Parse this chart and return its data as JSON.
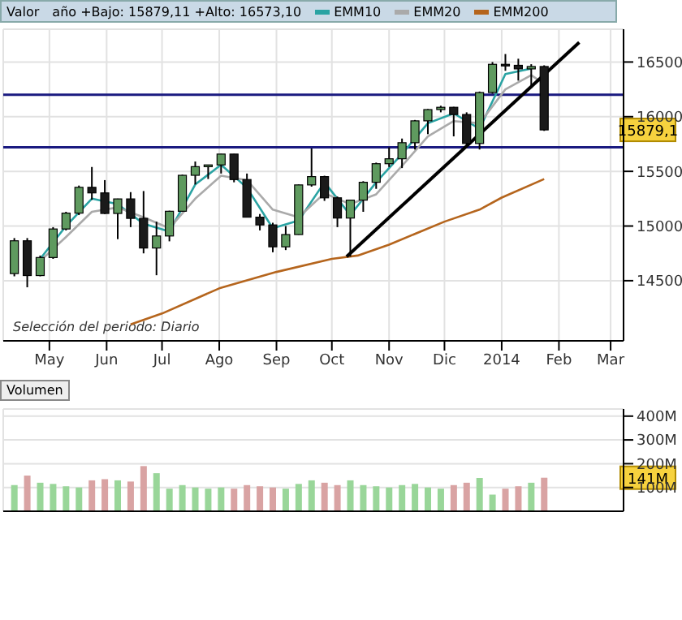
{
  "chart_data": [
    {
      "type": "candlestick",
      "title": "Valor",
      "subtitle": "año +Bajo: 15879,11 +Alto: 16573,10",
      "legend": "top",
      "grid": true,
      "x": [
        "2013-04-12",
        "2013-04-19",
        "2013-04-26",
        "2013-05-03",
        "2013-05-10",
        "2013-05-17",
        "2013-05-24",
        "2013-05-31",
        "2013-06-07",
        "2013-06-14",
        "2013-06-21",
        "2013-06-28",
        "2013-07-05",
        "2013-07-12",
        "2013-07-19",
        "2013-07-26",
        "2013-08-02",
        "2013-08-09",
        "2013-08-16",
        "2013-08-23",
        "2013-08-30",
        "2013-09-06",
        "2013-09-13",
        "2013-09-20",
        "2013-09-27",
        "2013-10-04",
        "2013-10-11",
        "2013-10-18",
        "2013-10-25",
        "2013-11-01",
        "2013-11-08",
        "2013-11-15",
        "2013-11-22",
        "2013-11-29",
        "2013-12-06",
        "2013-12-13",
        "2013-12-20",
        "2013-12-27",
        "2014-01-03",
        "2014-01-10",
        "2014-01-17",
        "2014-01-24"
      ],
      "ohlc": [
        [
          14565,
          14890,
          14540,
          14865
        ],
        [
          14865,
          14890,
          14440,
          14547
        ],
        [
          14547,
          14730,
          14540,
          14712
        ],
        [
          14712,
          14990,
          14700,
          14973
        ],
        [
          14973,
          15130,
          14960,
          15118
        ],
        [
          15118,
          15370,
          15100,
          15354
        ],
        [
          15354,
          15540,
          15240,
          15303
        ],
        [
          15303,
          15420,
          15110,
          15115
        ],
        [
          15115,
          15250,
          14880,
          15248
        ],
        [
          15248,
          15310,
          14990,
          15070
        ],
        [
          15070,
          15320,
          14750,
          14799
        ],
        [
          14799,
          15040,
          14550,
          14909
        ],
        [
          14909,
          15140,
          14860,
          15135
        ],
        [
          15135,
          15470,
          15130,
          15464
        ],
        [
          15464,
          15590,
          15380,
          15543
        ],
        [
          15543,
          15560,
          15430,
          15559
        ],
        [
          15559,
          15660,
          15480,
          15658
        ],
        [
          15658,
          15660,
          15400,
          15425
        ],
        [
          15425,
          15480,
          15080,
          15081
        ],
        [
          15081,
          15110,
          14960,
          15010
        ],
        [
          15010,
          15030,
          14760,
          14810
        ],
        [
          14810,
          15000,
          14780,
          14922
        ],
        [
          14922,
          15380,
          14920,
          15376
        ],
        [
          15376,
          15710,
          15360,
          15452
        ],
        [
          15452,
          15460,
          15230,
          15258
        ],
        [
          15258,
          15270,
          14990,
          15073
        ],
        [
          15073,
          15240,
          14720,
          15237
        ],
        [
          15237,
          15410,
          15130,
          15400
        ],
        [
          15400,
          15580,
          15340,
          15570
        ],
        [
          15570,
          15720,
          15540,
          15615
        ],
        [
          15615,
          15800,
          15530,
          15762
        ],
        [
          15762,
          15970,
          15700,
          15962
        ],
        [
          15962,
          16070,
          15840,
          16065
        ],
        [
          16065,
          16100,
          16040,
          16086
        ],
        [
          16086,
          16090,
          15820,
          16020
        ],
        [
          16020,
          16040,
          15740,
          15755
        ],
        [
          15755,
          16230,
          15700,
          16221
        ],
        [
          16221,
          16500,
          16210,
          16479
        ],
        [
          16479,
          16573,
          16420,
          16470
        ],
        [
          16470,
          16530,
          16330,
          16437
        ],
        [
          16437,
          16480,
          16260,
          16459
        ],
        [
          16459,
          16470,
          15870,
          15879.11
        ]
      ],
      "series": [
        {
          "name": "EMM10",
          "type": "line",
          "color": "#2aa3a3",
          "x": [
            "2013-04-26",
            "2013-05-10",
            "2013-05-24",
            "2013-06-07",
            "2013-06-21",
            "2013-07-05",
            "2013-07-19",
            "2013-08-02",
            "2013-08-16",
            "2013-08-30",
            "2013-09-13",
            "2013-09-27",
            "2013-10-11",
            "2013-10-25",
            "2013-11-08",
            "2013-11-22",
            "2013-12-06",
            "2013-12-20",
            "2014-01-03",
            "2014-01-17"
          ],
          "values": [
            14700,
            15000,
            15250,
            15200,
            15020,
            14950,
            15380,
            15560,
            15350,
            14980,
            15050,
            15400,
            15100,
            15400,
            15660,
            15940,
            16030,
            15890,
            16390,
            16440
          ]
        },
        {
          "name": "EMM20",
          "type": "line",
          "color": "#aaaaaa",
          "x": [
            "2013-04-26",
            "2013-05-10",
            "2013-05-24",
            "2013-06-07",
            "2013-06-21",
            "2013-07-05",
            "2013-07-19",
            "2013-08-02",
            "2013-08-16",
            "2013-08-30",
            "2013-09-13",
            "2013-09-27",
            "2013-10-11",
            "2013-10-25",
            "2013-11-08",
            "2013-11-22",
            "2013-12-06",
            "2013-12-20",
            "2014-01-03",
            "2014-01-17",
            "2014-01-24"
          ],
          "values": [
            14680,
            14900,
            15130,
            15170,
            15080,
            14980,
            15250,
            15460,
            15420,
            15150,
            15080,
            15300,
            15200,
            15290,
            15550,
            15820,
            15960,
            15940,
            16250,
            16380,
            16300
          ]
        },
        {
          "name": "EMM200",
          "type": "line",
          "color": "#b5651d",
          "x": [
            "2013-06-14",
            "2013-07-01",
            "2013-08-01",
            "2013-09-01",
            "2013-10-01",
            "2013-10-15",
            "2013-11-01",
            "2013-12-01",
            "2013-12-20",
            "2014-01-01",
            "2014-01-24"
          ],
          "values": [
            14100,
            14200,
            14430,
            14580,
            14700,
            14730,
            14830,
            15040,
            15150,
            15260,
            15430
          ]
        },
        {
          "type": "line",
          "color": "#000000",
          "x": [
            "2013-10-09",
            "2014-02-12"
          ],
          "values": [
            14720,
            16680
          ]
        }
      ],
      "ref_lines": [
        {
          "axis": "y",
          "value": 16200,
          "color": "#1a1a80"
        },
        {
          "axis": "y",
          "value": 15720,
          "color": "#1a1a80"
        }
      ],
      "xlim": [
        "2013-04-06",
        "2014-03-08"
      ],
      "xticks": [
        {
          "value": "2013-05-01",
          "label": "May"
        },
        {
          "value": "2013-06-01",
          "label": "Jun"
        },
        {
          "value": "2013-07-01",
          "label": "Jul"
        },
        {
          "value": "2013-08-01",
          "label": "Ago"
        },
        {
          "value": "2013-09-01",
          "label": "Sep"
        },
        {
          "value": "2013-10-01",
          "label": "Oct"
        },
        {
          "value": "2013-11-01",
          "label": "Nov"
        },
        {
          "value": "2013-12-01",
          "label": "Dic"
        },
        {
          "value": "2014-01-01",
          "label": "2014"
        },
        {
          "value": "2014-02-01",
          "label": "Feb"
        },
        {
          "value": "2014-03-01",
          "label": "Mar"
        }
      ],
      "ylim": [
        13950,
        16800
      ],
      "yticks": [
        14500,
        15000,
        15500,
        16000,
        16500
      ],
      "annotations": [
        "Selección del periodo: Diario",
        {
          "text": "15879,1",
          "y": 15879.11
        }
      ]
    },
    {
      "type": "bar",
      "title": "Volumen",
      "grid": true,
      "tick_labels": "y",
      "x": [
        "2013-04-12",
        "2013-04-19",
        "2013-04-26",
        "2013-05-03",
        "2013-05-10",
        "2013-05-17",
        "2013-05-24",
        "2013-05-31",
        "2013-06-07",
        "2013-06-14",
        "2013-06-21",
        "2013-06-28",
        "2013-07-05",
        "2013-07-12",
        "2013-07-19",
        "2013-07-26",
        "2013-08-02",
        "2013-08-09",
        "2013-08-16",
        "2013-08-23",
        "2013-08-30",
        "2013-09-06",
        "2013-09-13",
        "2013-09-20",
        "2013-09-27",
        "2013-10-04",
        "2013-10-11",
        "2013-10-18",
        "2013-10-25",
        "2013-11-01",
        "2013-11-08",
        "2013-11-15",
        "2013-11-22",
        "2013-11-29",
        "2013-12-06",
        "2013-12-13",
        "2013-12-20",
        "2013-12-27",
        "2014-01-03",
        "2014-01-10",
        "2014-01-17",
        "2014-01-24"
      ],
      "values": [
        110,
        150,
        120,
        115,
        105,
        100,
        130,
        135,
        130,
        125,
        190,
        160,
        95,
        110,
        100,
        95,
        100,
        95,
        110,
        105,
        100,
        95,
        115,
        130,
        120,
        110,
        130,
        110,
        105,
        100,
        110,
        115,
        100,
        95,
        110,
        120,
        140,
        70,
        95,
        105,
        120,
        141
      ],
      "colors": [
        "#99d699",
        "#d9a3a3",
        "#99d699",
        "#99d699",
        "#99d699",
        "#99d699",
        "#d9a3a3",
        "#d9a3a3",
        "#99d699",
        "#d9a3a3",
        "#d9a3a3",
        "#99d699",
        "#99d699",
        "#99d699",
        "#99d699",
        "#99d699",
        "#99d699",
        "#d9a3a3",
        "#d9a3a3",
        "#d9a3a3",
        "#d9a3a3",
        "#99d699",
        "#99d699",
        "#99d699",
        "#d9a3a3",
        "#d9a3a3",
        "#99d699",
        "#99d699",
        "#99d699",
        "#99d699",
        "#99d699",
        "#99d699",
        "#99d699",
        "#99d699",
        "#d9a3a3",
        "#d9a3a3",
        "#99d699",
        "#99d699",
        "#d9a3a3",
        "#d9a3a3",
        "#99d699",
        "#d9a3a3"
      ],
      "xlim": [
        "2013-04-06",
        "2014-03-08"
      ],
      "xticks": [
        {
          "value": "2013-05-01",
          "label": null
        },
        {
          "value": "2013-06-01",
          "label": null
        },
        {
          "value": "2013-07-01",
          "label": null
        },
        {
          "value": "2013-08-01",
          "label": null
        },
        {
          "value": "2013-09-01",
          "label": null
        },
        {
          "value": "2013-10-01",
          "label": null
        },
        {
          "value": "2013-11-01",
          "label": null
        },
        {
          "value": "2013-12-01",
          "label": null
        },
        {
          "value": "2014-01-01",
          "label": null
        },
        {
          "value": "2014-02-01",
          "label": null
        },
        {
          "value": "2014-03-01",
          "label": null
        }
      ],
      "ylim": [
        0,
        430
      ],
      "yticks": [
        {
          "value": 100,
          "label": "100M"
        },
        {
          "value": 200,
          "label": "200M"
        },
        {
          "value": 300,
          "label": "300M"
        },
        {
          "value": 400,
          "label": "400M"
        }
      ],
      "annotations": [
        {
          "text": "141M",
          "y": 141
        }
      ]
    }
  ]
}
